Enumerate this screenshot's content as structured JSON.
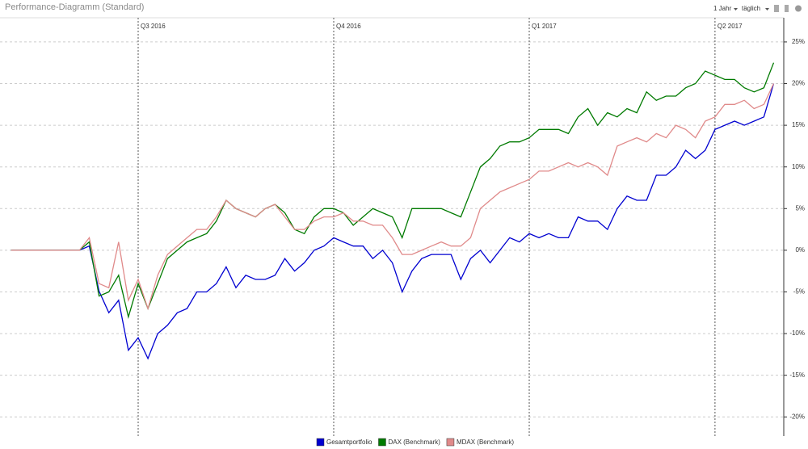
{
  "header": {
    "title": "Performance-Diagramm (Standard)",
    "period": "1 Jahr",
    "interval": "täglich"
  },
  "chart_data": {
    "type": "line",
    "categories": [
      null,
      null,
      null,
      null,
      null,
      null,
      null,
      null,
      null,
      null,
      null,
      null,
      null,
      "Q3 2016",
      null,
      null,
      null,
      null,
      null,
      null,
      null,
      null,
      null,
      null,
      null,
      null,
      null,
      null,
      null,
      null,
      null,
      null,
      null,
      "Q4 2016",
      null,
      null,
      null,
      null,
      null,
      null,
      null,
      null,
      null,
      null,
      null,
      null,
      null,
      null,
      null,
      null,
      null,
      null,
      null,
      "Q1 2017",
      null,
      null,
      null,
      null,
      null,
      null,
      null,
      null,
      null,
      null,
      null,
      null,
      null,
      null,
      null,
      null,
      null,
      null,
      "Q2 2017",
      null,
      null,
      null,
      null,
      null,
      null
    ],
    "series": [
      {
        "name": "Gesamtportfolio",
        "color": "#0000d0",
        "values": [
          0,
          0,
          0,
          0,
          0,
          0,
          0,
          0,
          0.5,
          -4.9,
          -7.5,
          -6,
          -12,
          -10.5,
          -13,
          -10,
          -9,
          -7.5,
          -7,
          -5,
          -5,
          -4,
          -2,
          -4.5,
          -3,
          -3.5,
          -3.5,
          -3,
          -1,
          -2.5,
          -1.5,
          0,
          0.5,
          1.5,
          1,
          0.5,
          0.5,
          -1,
          0,
          -1.5,
          -5,
          -2.5,
          -1,
          -0.5,
          -0.5,
          -0.5,
          -3.5,
          -1,
          0,
          -1.5,
          0,
          1.5,
          1,
          2,
          1.5,
          2,
          1.5,
          1.5,
          4,
          3.5,
          3.5,
          2.5,
          5,
          6.5,
          6,
          6,
          9,
          9,
          10,
          12,
          11,
          12,
          14.5,
          15,
          15.5,
          15,
          15.5,
          16,
          20
        ]
      },
      {
        "name": "DAX (Benchmark)",
        "color": "#007a00",
        "values": [
          0,
          0,
          0,
          0,
          0,
          0,
          0,
          0,
          1,
          -5.5,
          -5,
          -3,
          -8,
          -4,
          -7,
          -4,
          -1,
          0,
          1,
          1.5,
          2,
          3.5,
          6,
          5,
          4.5,
          4,
          5,
          5.5,
          4.5,
          2.5,
          2,
          4,
          5,
          5,
          4.5,
          3,
          4,
          5,
          4.5,
          4,
          1.5,
          5,
          5,
          5,
          5,
          4.5,
          4,
          7,
          10,
          11,
          12.5,
          13,
          13,
          13.5,
          14.5,
          14.5,
          14.5,
          14,
          16,
          17,
          15,
          16.5,
          16,
          17,
          16.5,
          19,
          18,
          18.5,
          18.5,
          19.5,
          20,
          21.5,
          21,
          20.5,
          20.5,
          19.5,
          19,
          19.5,
          22.5
        ]
      },
      {
        "name": "MDAX (Benchmark)",
        "color": "#e08a8a",
        "values": [
          0,
          0,
          0,
          0,
          0,
          0,
          0,
          0,
          1.5,
          -4,
          -4.5,
          1,
          -6,
          -3.5,
          -7,
          -3,
          -0.5,
          0.5,
          1.5,
          2.5,
          2.5,
          4,
          6,
          5,
          4.5,
          4,
          5,
          5.5,
          4,
          2.5,
          2.5,
          3.5,
          4,
          4,
          4.5,
          3.5,
          3.5,
          3,
          3,
          1.5,
          -0.5,
          -0.5,
          0,
          0.5,
          1,
          0.5,
          0.5,
          1.5,
          5,
          6,
          7,
          7.5,
          8,
          8.5,
          9.5,
          9.5,
          10,
          10.5,
          10,
          10.5,
          10,
          9,
          12.5,
          13,
          13.5,
          13,
          14,
          13.5,
          15,
          14.5,
          13.5,
          15.5,
          16,
          17.5,
          17.5,
          18,
          17,
          17.5,
          20
        ]
      }
    ],
    "ylim": [
      -22.3,
      27.9
    ],
    "yticks": [
      {
        "value": -20,
        "label": "-20%"
      },
      {
        "value": -15,
        "label": "-15%"
      },
      {
        "value": -10,
        "label": "-10%"
      },
      {
        "value": -5,
        "label": "-5%"
      },
      {
        "value": 0,
        "label": "0%"
      },
      {
        "value": 5,
        "label": "5%"
      },
      {
        "value": 10,
        "label": "10%"
      },
      {
        "value": 15,
        "label": "15%"
      },
      {
        "value": 20,
        "label": "20%"
      },
      {
        "value": 25,
        "label": "25%"
      }
    ],
    "grid": true
  }
}
